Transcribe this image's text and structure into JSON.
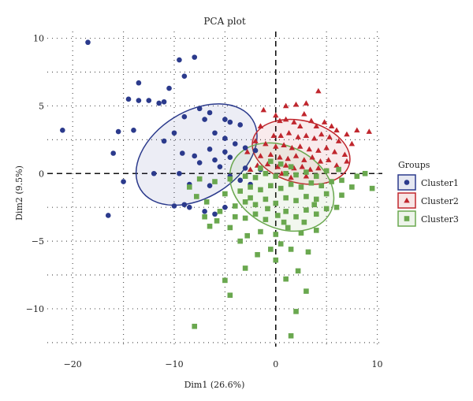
{
  "chart_data": {
    "type": "scatter",
    "title": "PCA plot",
    "xlabel": "Dim1 (26.6%)",
    "ylabel": "Dim2 (9.5%)",
    "xlim": [
      -22.5,
      10.5
    ],
    "ylim": [
      -12.8,
      10.5
    ],
    "xticks": [
      -20,
      -10,
      0,
      10
    ],
    "yticks": [
      -10,
      -5,
      0,
      5,
      10
    ],
    "xtick_labels": [
      "−20",
      "−10",
      "0",
      "10"
    ],
    "ytick_labels": [
      "−10",
      "−5",
      "0",
      "5",
      "10"
    ],
    "grid": "dotted",
    "legend": {
      "title": "Groups",
      "position": "right"
    },
    "series": [
      {
        "name": "Cluster1",
        "marker": "circle",
        "color": "#2b3a8c",
        "ellipse": {
          "cx": -7.8,
          "cy": 1.4,
          "rx": 6.5,
          "ry": 3.2,
          "angle_deg": -32
        },
        "points": [
          [
            -18.5,
            9.7
          ],
          [
            -9.5,
            8.4
          ],
          [
            -8.0,
            8.6
          ],
          [
            -11.5,
            5.2
          ],
          [
            -13.5,
            6.7
          ],
          [
            -14.5,
            5.5
          ],
          [
            -13.5,
            5.4
          ],
          [
            -12.5,
            5.4
          ],
          [
            -9.0,
            7.2
          ],
          [
            -11.0,
            5.3
          ],
          [
            -15.5,
            3.1
          ],
          [
            -14.0,
            3.2
          ],
          [
            -10.0,
            3.0
          ],
          [
            -11.0,
            2.4
          ],
          [
            -7.5,
            4.8
          ],
          [
            -6.5,
            4.5
          ],
          [
            -5.0,
            4.0
          ],
          [
            -4.5,
            3.8
          ],
          [
            -3.5,
            3.6
          ],
          [
            -6.0,
            3.0
          ],
          [
            -5.0,
            2.6
          ],
          [
            -6.5,
            1.8
          ],
          [
            -4.0,
            2.2
          ],
          [
            -3.0,
            1.9
          ],
          [
            -2.0,
            1.7
          ],
          [
            -8.0,
            1.3
          ],
          [
            -6.0,
            1.0
          ],
          [
            -5.5,
            0.5
          ],
          [
            -4.5,
            -0.2
          ],
          [
            -3.5,
            -0.5
          ],
          [
            -9.5,
            0.0
          ],
          [
            -12.0,
            0.0
          ],
          [
            -10.0,
            -2.4
          ],
          [
            -9.0,
            -2.3
          ],
          [
            -8.5,
            -2.5
          ],
          [
            -7.0,
            -2.8
          ],
          [
            -6.0,
            -3.0
          ],
          [
            -5.0,
            -2.5
          ],
          [
            -16.0,
            1.5
          ],
          [
            -16.5,
            -3.1
          ],
          [
            -21.0,
            3.2
          ],
          [
            -15.0,
            -0.6
          ],
          [
            -7.5,
            0.8
          ],
          [
            -4.5,
            1.2
          ],
          [
            -3.0,
            0.4
          ],
          [
            -2.5,
            -0.8
          ],
          [
            -6.5,
            -0.9
          ],
          [
            -8.5,
            -0.8
          ],
          [
            -1.5,
            0.3
          ],
          [
            -5.0,
            1.6
          ],
          [
            -7.0,
            4.0
          ],
          [
            -9.0,
            4.2
          ],
          [
            -10.5,
            6.3
          ],
          [
            -9.2,
            1.5
          ]
        ]
      },
      {
        "name": "Cluster2",
        "marker": "triangle",
        "color": "#c0262d",
        "ellipse": {
          "cx": 2.5,
          "cy": 1.6,
          "rx": 4.9,
          "ry": 2.3,
          "angle_deg": 14
        },
        "points": [
          [
            4.2,
            6.1
          ],
          [
            2.0,
            5.1
          ],
          [
            3.0,
            5.2
          ],
          [
            1.0,
            5.0
          ],
          [
            -1.2,
            4.7
          ],
          [
            -1.5,
            3.5
          ],
          [
            0.0,
            4.3
          ],
          [
            0.4,
            3.9
          ],
          [
            1.0,
            4.0
          ],
          [
            1.8,
            3.8
          ],
          [
            2.8,
            4.4
          ],
          [
            3.5,
            3.9
          ],
          [
            4.0,
            3.5
          ],
          [
            4.8,
            3.8
          ],
          [
            5.5,
            3.5
          ],
          [
            6.0,
            3.2
          ],
          [
            7.0,
            2.9
          ],
          [
            8.0,
            3.2
          ],
          [
            9.2,
            3.1
          ],
          [
            -0.2,
            2.8
          ],
          [
            0.5,
            2.8
          ],
          [
            1.3,
            3.0
          ],
          [
            2.2,
            2.7
          ],
          [
            3.0,
            2.8
          ],
          [
            3.8,
            2.6
          ],
          [
            4.5,
            2.9
          ],
          [
            5.3,
            2.7
          ],
          [
            6.2,
            2.4
          ],
          [
            7.5,
            2.2
          ],
          [
            -2.0,
            2.4
          ],
          [
            -1.0,
            2.2
          ],
          [
            0.0,
            2.0
          ],
          [
            0.8,
            2.1
          ],
          [
            1.6,
            1.9
          ],
          [
            2.4,
            2.0
          ],
          [
            3.3,
            1.8
          ],
          [
            4.2,
            1.7
          ],
          [
            5.0,
            1.9
          ],
          [
            5.8,
            1.6
          ],
          [
            6.8,
            1.4
          ],
          [
            7.0,
            0.9
          ],
          [
            -2.8,
            1.6
          ],
          [
            -1.5,
            1.3
          ],
          [
            -0.5,
            1.4
          ],
          [
            0.4,
            1.2
          ],
          [
            1.2,
            1.1
          ],
          [
            2.0,
            1.3
          ],
          [
            2.8,
            1.0
          ],
          [
            3.6,
            1.2
          ],
          [
            4.4,
            0.9
          ],
          [
            5.2,
            1.0
          ],
          [
            6.0,
            0.6
          ],
          [
            -1.8,
            0.6
          ],
          [
            -0.8,
            0.7
          ],
          [
            0.2,
            0.5
          ],
          [
            1.0,
            0.6
          ],
          [
            1.8,
            0.4
          ],
          [
            2.6,
            0.5
          ],
          [
            3.4,
            0.3
          ],
          [
            4.2,
            0.4
          ],
          [
            5.0,
            0.2
          ],
          [
            1.5,
            -0.3
          ],
          [
            3.0,
            -0.2
          ],
          [
            0.6,
            0.0
          ],
          [
            2.4,
            3.5
          ],
          [
            -2.5,
            0.3
          ]
        ]
      },
      {
        "name": "Cluster3",
        "marker": "square",
        "color": "#6aa84f",
        "ellipse": {
          "cx": 0.6,
          "cy": -1.0,
          "rx": 5.4,
          "ry": 3.0,
          "angle_deg": 28
        },
        "points": [
          [
            -8.0,
            -11.3
          ],
          [
            1.5,
            -12.0
          ],
          [
            2.0,
            -10.2
          ],
          [
            -5.0,
            -7.9
          ],
          [
            -4.5,
            -9.0
          ],
          [
            1.0,
            -7.8
          ],
          [
            3.0,
            -8.7
          ],
          [
            -3.0,
            -7.0
          ],
          [
            0.0,
            -6.4
          ],
          [
            2.2,
            -7.2
          ],
          [
            -1.8,
            -6.0
          ],
          [
            -0.5,
            -5.6
          ],
          [
            0.5,
            -5.2
          ],
          [
            1.5,
            -5.6
          ],
          [
            3.2,
            -5.8
          ],
          [
            -3.5,
            -5.0
          ],
          [
            -2.8,
            -4.6
          ],
          [
            -1.5,
            -4.3
          ],
          [
            0.0,
            -4.5
          ],
          [
            1.2,
            -4.0
          ],
          [
            2.5,
            -4.4
          ],
          [
            4.0,
            -4.2
          ],
          [
            -4.5,
            -4.0
          ],
          [
            -5.8,
            -3.5
          ],
          [
            -6.5,
            -3.9
          ],
          [
            -7.0,
            -3.2
          ],
          [
            -3.0,
            -3.3
          ],
          [
            -2.0,
            -3.0
          ],
          [
            -1.0,
            -3.4
          ],
          [
            0.2,
            -3.1
          ],
          [
            1.0,
            -2.8
          ],
          [
            2.0,
            -3.2
          ],
          [
            3.0,
            -2.7
          ],
          [
            4.0,
            -3.0
          ],
          [
            5.0,
            -2.6
          ],
          [
            6.0,
            -2.5
          ],
          [
            -4.0,
            -2.4
          ],
          [
            -3.0,
            -2.1
          ],
          [
            -2.0,
            -2.3
          ],
          [
            -1.0,
            -1.9
          ],
          [
            0.0,
            -2.2
          ],
          [
            1.0,
            -1.8
          ],
          [
            2.0,
            -2.0
          ],
          [
            3.0,
            -1.7
          ],
          [
            4.0,
            -1.9
          ],
          [
            5.0,
            -1.5
          ],
          [
            6.5,
            -1.6
          ],
          [
            7.5,
            -1.0
          ],
          [
            9.5,
            -1.1
          ],
          [
            -5.0,
            -1.5
          ],
          [
            -3.5,
            -1.3
          ],
          [
            -2.5,
            -1.0
          ],
          [
            -1.5,
            -1.2
          ],
          [
            -0.5,
            -0.9
          ],
          [
            0.5,
            -1.1
          ],
          [
            1.5,
            -0.8
          ],
          [
            2.5,
            -1.0
          ],
          [
            3.5,
            -0.7
          ],
          [
            4.5,
            -0.9
          ],
          [
            5.5,
            -0.6
          ],
          [
            6.5,
            -0.5
          ],
          [
            8.0,
            -0.2
          ],
          [
            8.8,
            0.0
          ],
          [
            -6.0,
            -0.6
          ],
          [
            -4.5,
            -0.4
          ],
          [
            -3.0,
            -0.2
          ],
          [
            -2.0,
            -0.3
          ],
          [
            -1.0,
            0.0
          ],
          [
            0.0,
            -0.2
          ],
          [
            1.0,
            0.0
          ],
          [
            2.0,
            -0.1
          ],
          [
            3.0,
            0.1
          ],
          [
            4.0,
            -0.2
          ],
          [
            5.0,
            0.2
          ],
          [
            6.2,
            0.3
          ],
          [
            -7.5,
            -0.4
          ],
          [
            -8.5,
            -1.0
          ],
          [
            -7.8,
            -1.7
          ],
          [
            -6.8,
            -2.1
          ],
          [
            -0.5,
            0.9
          ],
          [
            0.5,
            0.7
          ],
          [
            1.5,
            0.5
          ],
          [
            -1.5,
            0.4
          ],
          [
            -2.5,
            -1.8
          ],
          [
            -4.0,
            -3.2
          ],
          [
            -5.5,
            -2.8
          ],
          [
            2.8,
            -3.6
          ],
          [
            3.8,
            -2.3
          ],
          [
            -0.8,
            -2.6
          ],
          [
            0.8,
            -3.6
          ]
        ]
      }
    ]
  }
}
